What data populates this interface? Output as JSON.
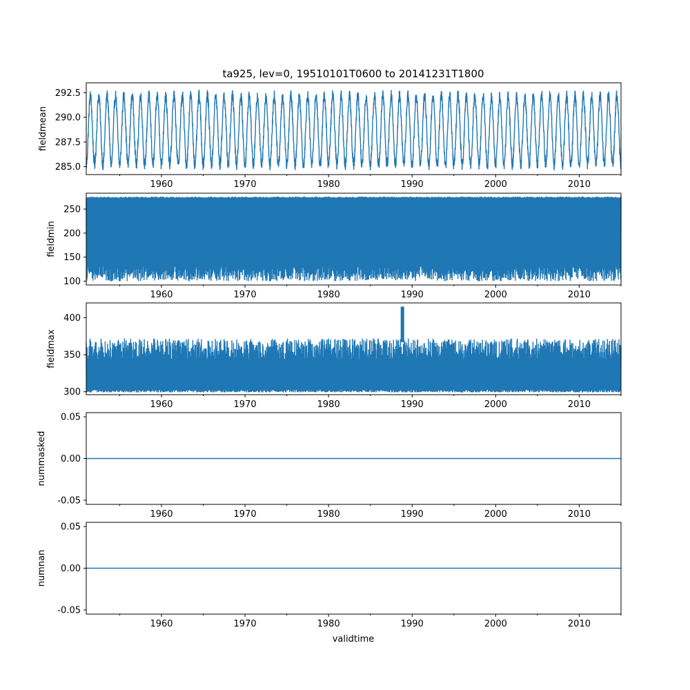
{
  "figure": {
    "title": "ta925, lev=0, 19510101T0600 to 20141231T1800",
    "xlabel": "validtime",
    "line_color": "#1f77b4"
  },
  "chart_data": [
    {
      "type": "line",
      "ylabel": "fieldmean",
      "xlim": [
        1951.0,
        2015.0
      ],
      "ylim": [
        284.2,
        293.5
      ],
      "x_ticks": [
        "1960",
        "1970",
        "1980",
        "1990",
        "2000",
        "2010"
      ],
      "y_ticks": [
        "285.0",
        "287.5",
        "290.0",
        "292.5"
      ],
      "series": [
        {
          "name": "fieldmean",
          "pattern": "annual cycle",
          "low": 285.2,
          "high": 292.2,
          "noise": 0.6
        }
      ]
    },
    {
      "type": "line",
      "ylabel": "fieldmin",
      "xlim": [
        1951.0,
        2015.0
      ],
      "ylim": [
        92,
        283
      ],
      "x_ticks": [
        "1960",
        "1970",
        "1980",
        "1990",
        "2000",
        "2010"
      ],
      "y_ticks": [
        "100",
        "150",
        "200",
        "250"
      ],
      "series": [
        {
          "name": "fieldmin",
          "pattern": "dense band",
          "low": 100,
          "high": 276,
          "notable_dips": [
            [
              1954,
              152
            ],
            [
              1955,
              155
            ],
            [
              1973,
              150
            ],
            [
              1998,
              175
            ]
          ]
        }
      ]
    },
    {
      "type": "line",
      "ylabel": "fieldmax",
      "xlim": [
        1951.0,
        2015.0
      ],
      "ylim": [
        296,
        420
      ],
      "x_ticks": [
        "1960",
        "1970",
        "1980",
        "1990",
        "2000",
        "2010"
      ],
      "y_ticks": [
        "300",
        "350",
        "400"
      ],
      "series": [
        {
          "name": "fieldmax",
          "pattern": "dense band",
          "low": 303,
          "high": 372,
          "spike": [
            1988.8,
            415
          ]
        }
      ]
    },
    {
      "type": "line",
      "ylabel": "nummasked",
      "xlim": [
        1951.0,
        2015.0
      ],
      "ylim": [
        -0.055,
        0.055
      ],
      "x_ticks": [
        "1960",
        "1970",
        "1980",
        "1990",
        "2000",
        "2010"
      ],
      "y_ticks": [
        "-0.05",
        "0.00",
        "0.05"
      ],
      "series": [
        {
          "name": "nummasked",
          "pattern": "constant",
          "value": 0.0
        }
      ]
    },
    {
      "type": "line",
      "ylabel": "numnan",
      "xlim": [
        1951.0,
        2015.0
      ],
      "ylim": [
        -0.055,
        0.055
      ],
      "x_ticks": [
        "1960",
        "1970",
        "1980",
        "1990",
        "2000",
        "2010"
      ],
      "y_ticks": [
        "-0.05",
        "0.00",
        "0.05"
      ],
      "series": [
        {
          "name": "numnan",
          "pattern": "constant",
          "value": 0.0
        }
      ]
    }
  ]
}
